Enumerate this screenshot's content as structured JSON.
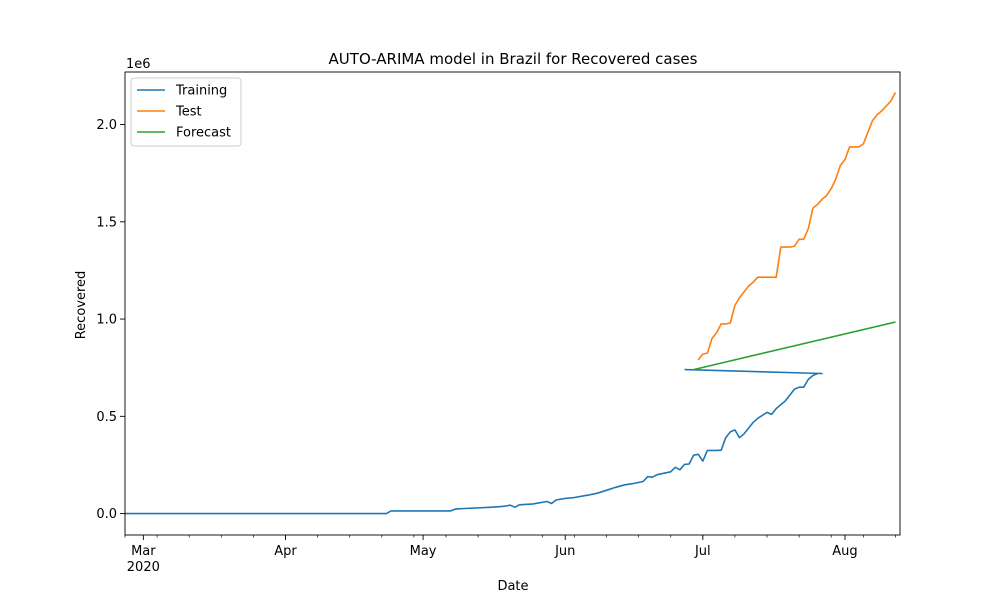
{
  "chart_data": {
    "type": "line",
    "title": "AUTO-ARIMA model in Brazil for Recovered cases",
    "xlabel": "Date",
    "ylabel": "Recovered",
    "y_offset_label": "1e6",
    "x_range": [
      "2020-02-26",
      "2020-08-13"
    ],
    "y_range": [
      -0.11,
      2.27
    ],
    "y_unit_scale": 1000000,
    "x_ticks": [
      {
        "date": "2020-03-01",
        "label": "Mar",
        "sublabel": "2020"
      },
      {
        "date": "2020-04-01",
        "label": "Apr",
        "sublabel": ""
      },
      {
        "date": "2020-05-01",
        "label": "May",
        "sublabel": ""
      },
      {
        "date": "2020-06-01",
        "label": "Jun",
        "sublabel": ""
      },
      {
        "date": "2020-07-01",
        "label": "Jul",
        "sublabel": ""
      },
      {
        "date": "2020-08-01",
        "label": "Aug",
        "sublabel": ""
      }
    ],
    "y_ticks": [
      {
        "value": 0.0,
        "label": "0.0"
      },
      {
        "value": 0.5,
        "label": "0.5"
      },
      {
        "value": 1.0,
        "label": "1.0"
      },
      {
        "value": 1.5,
        "label": "1.5"
      },
      {
        "value": 2.0,
        "label": "2.0"
      }
    ],
    "grid": false,
    "legend": "top-left",
    "series": [
      {
        "name": "Training",
        "color": "#1f77b4",
        "points": [
          [
            "2020-02-26",
            0
          ],
          [
            "2020-03-10",
            0
          ],
          [
            "2020-03-20",
            0
          ],
          [
            "2020-04-01",
            0
          ],
          [
            "2020-04-10",
            0
          ],
          [
            "2020-04-20",
            0
          ],
          [
            "2020-04-23",
            0
          ],
          [
            "2020-04-24",
            0.014
          ],
          [
            "2020-04-27",
            0.014
          ],
          [
            "2020-05-01",
            0.014
          ],
          [
            "2020-05-07",
            0.014
          ],
          [
            "2020-05-08",
            0.023
          ],
          [
            "2020-05-10",
            0.026
          ],
          [
            "2020-05-15",
            0.032
          ],
          [
            "2020-05-18",
            0.036
          ],
          [
            "2020-05-19",
            0.039
          ],
          [
            "2020-05-20",
            0.043
          ],
          [
            "2020-05-21",
            0.033
          ],
          [
            "2020-05-22",
            0.045
          ],
          [
            "2020-05-25",
            0.05
          ],
          [
            "2020-05-28",
            0.062
          ],
          [
            "2020-05-29",
            0.052
          ],
          [
            "2020-05-30",
            0.07
          ],
          [
            "2020-06-01",
            0.078
          ],
          [
            "2020-06-03",
            0.083
          ],
          [
            "2020-06-06",
            0.095
          ],
          [
            "2020-06-08",
            0.105
          ],
          [
            "2020-06-10",
            0.12
          ],
          [
            "2020-06-12",
            0.135
          ],
          [
            "2020-06-14",
            0.148
          ],
          [
            "2020-06-16",
            0.155
          ],
          [
            "2020-06-18",
            0.165
          ],
          [
            "2020-06-19",
            0.19
          ],
          [
            "2020-06-20",
            0.187
          ],
          [
            "2020-06-21",
            0.2
          ],
          [
            "2020-06-24",
            0.215
          ],
          [
            "2020-06-25",
            0.238
          ],
          [
            "2020-06-26",
            0.225
          ],
          [
            "2020-06-27",
            0.253
          ],
          [
            "2020-06-28",
            0.255
          ],
          [
            "2020-06-29",
            0.3
          ],
          [
            "2020-06-30",
            0.305
          ],
          [
            "2020-07-01",
            0.27
          ],
          [
            "2020-07-02",
            0.325
          ],
          [
            "2020-07-04",
            0.325
          ],
          [
            "2020-07-05",
            0.326
          ],
          [
            "2020-07-06",
            0.39
          ],
          [
            "2020-07-07",
            0.42
          ],
          [
            "2020-07-08",
            0.43
          ],
          [
            "2020-07-09",
            0.39
          ],
          [
            "2020-07-10",
            0.41
          ],
          [
            "2020-07-11",
            0.44
          ],
          [
            "2020-07-12",
            0.47
          ],
          [
            "2020-07-13",
            0.49
          ],
          [
            "2020-07-15",
            0.52
          ],
          [
            "2020-07-16",
            0.51
          ],
          [
            "2020-07-17",
            0.54
          ],
          [
            "2020-07-19",
            0.58
          ],
          [
            "2020-07-21",
            0.64
          ],
          [
            "2020-07-22",
            0.65
          ],
          [
            "2020-07-23",
            0.65
          ],
          [
            "2020-07-24",
            0.69
          ],
          [
            "2020-07-25",
            0.71
          ],
          [
            "2020-07-26",
            0.72
          ],
          [
            "2020-07-27",
            0.72
          ],
          [
            "2020-06-27",
            0.74
          ]
        ]
      },
      {
        "name": "Test",
        "color": "#ff7f0e",
        "points": [
          [
            "2020-06-30",
            0.79
          ],
          [
            "2020-07-01",
            0.82
          ],
          [
            "2020-07-02",
            0.825
          ],
          [
            "2020-07-03",
            0.9
          ],
          [
            "2020-07-04",
            0.93
          ],
          [
            "2020-07-05",
            0.975
          ],
          [
            "2020-07-06",
            0.975
          ],
          [
            "2020-07-07",
            0.98
          ],
          [
            "2020-07-08",
            1.07
          ],
          [
            "2020-07-09",
            1.11
          ],
          [
            "2020-07-10",
            1.14
          ],
          [
            "2020-07-11",
            1.17
          ],
          [
            "2020-07-12",
            1.19
          ],
          [
            "2020-07-13",
            1.215
          ],
          [
            "2020-07-14",
            1.215
          ],
          [
            "2020-07-15",
            1.215
          ],
          [
            "2020-07-16",
            1.215
          ],
          [
            "2020-07-17",
            1.215
          ],
          [
            "2020-07-18",
            1.37
          ],
          [
            "2020-07-19",
            1.37
          ],
          [
            "2020-07-20",
            1.37
          ],
          [
            "2020-07-21",
            1.375
          ],
          [
            "2020-07-22",
            1.41
          ],
          [
            "2020-07-23",
            1.41
          ],
          [
            "2020-07-24",
            1.465
          ],
          [
            "2020-07-25",
            1.57
          ],
          [
            "2020-07-26",
            1.59
          ],
          [
            "2020-07-27",
            1.615
          ],
          [
            "2020-07-28",
            1.635
          ],
          [
            "2020-07-29",
            1.67
          ],
          [
            "2020-07-30",
            1.72
          ],
          [
            "2020-07-31",
            1.79
          ],
          [
            "2020-08-01",
            1.82
          ],
          [
            "2020-08-02",
            1.885
          ],
          [
            "2020-08-03",
            1.885
          ],
          [
            "2020-08-04",
            1.885
          ],
          [
            "2020-08-05",
            1.9
          ],
          [
            "2020-08-06",
            1.96
          ],
          [
            "2020-08-07",
            2.02
          ],
          [
            "2020-08-08",
            2.05
          ],
          [
            "2020-08-09",
            2.07
          ],
          [
            "2020-08-10",
            2.095
          ],
          [
            "2020-08-11",
            2.12
          ],
          [
            "2020-08-12",
            2.165
          ]
        ]
      },
      {
        "name": "Forecast",
        "color": "#2ca02c",
        "points": [
          [
            "2020-06-29",
            0.74
          ],
          [
            "2020-08-12",
            0.985
          ]
        ]
      }
    ]
  }
}
